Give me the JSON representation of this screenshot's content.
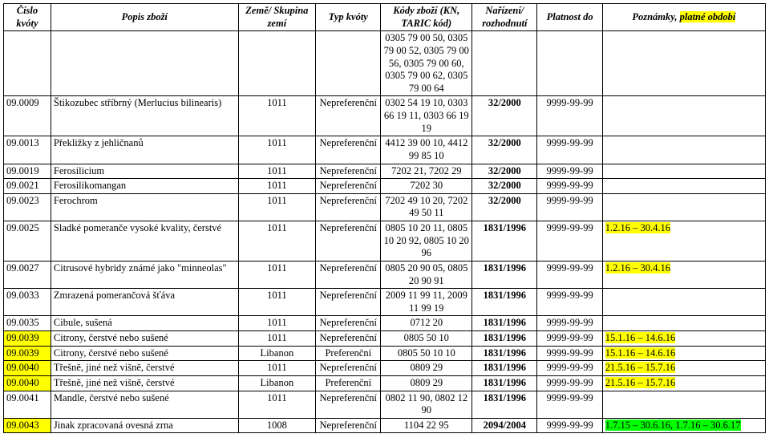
{
  "headers": {
    "cislo": "Číslo kvóty",
    "popis": "Popis zboží",
    "zeme": "Země/ Skupina zemí",
    "typ": "Typ kvóty",
    "kody": "Kódy zboží (KN, TARIC kód)",
    "nariz": "Nařízení/ rozhodnutí",
    "plat": "Platnost do",
    "pozn_prefix": "Poznámky, ",
    "pozn_hl": "platné období"
  },
  "topCodesRow": {
    "codes": "0305 79 00 50, 0305 79 00 52, 0305 79 00 56, 0305 79 00 60, 0305 79 00 62, 0305 79 00 64"
  },
  "rows": [
    {
      "cislo": "09.0009",
      "popis": "Štikozubec stříbrný (Merlucius bilinearis)",
      "zeme": "1011",
      "typ": "Nepreferenční",
      "kody": "0302 54 19 10, 0303 66 19 11, 0303 66 19 19",
      "nariz": "32/2000",
      "plat": "9999-99-99",
      "pozn": ""
    },
    {
      "cislo": "09.0013",
      "popis": "Překližky z jehličnanů",
      "zeme": "1011",
      "typ": "Nepreferenční",
      "kody": "4412 39 00 10, 4412 99 85 10",
      "nariz": "32/2000",
      "plat": "9999-99-99",
      "pozn": ""
    },
    {
      "cislo": "09.0019",
      "popis": "Ferosilicium",
      "zeme": "1011",
      "typ": "Nepreferenční",
      "kody": "7202 21, 7202 29",
      "nariz": "32/2000",
      "plat": "9999-99-99",
      "pozn": ""
    },
    {
      "cislo": "09.0021",
      "popis": "Ferosilikomangan",
      "zeme": "1011",
      "typ": "Nepreferenční",
      "kody": "7202 30",
      "nariz": "32/2000",
      "plat": "9999-99-99",
      "pozn": ""
    },
    {
      "cislo": "09.0023",
      "popis": "Ferochrom",
      "zeme": "1011",
      "typ": "Nepreferenční",
      "kody": "7202 49 10 20, 7202 49 50 11",
      "nariz": "32/2000",
      "plat": "9999-99-99",
      "pozn": ""
    },
    {
      "cislo": "09.0025",
      "popis": "Sladké pomeranče vysoké kvality, čerstvé",
      "zeme": "1011",
      "typ": "Nepreferenční",
      "kody": "0805 10 20 11, 0805 10 20 92, 0805 10 20 96",
      "nariz": "1831/1996",
      "plat": "9999-99-99",
      "pozn_hl": "1.2.16 – 30.4.16",
      "pozn_hl_color": "yellow"
    },
    {
      "cislo": "09.0027",
      "popis": "Citrusové hybridy známé jako \"minneolas\"",
      "zeme": "1011",
      "typ": "Nepreferenční",
      "kody": "0805 20 90 05, 0805 20 90 91",
      "nariz": "1831/1996",
      "plat": "9999-99-99",
      "pozn_hl": "1.2.16 – 30.4.16",
      "pozn_hl_color": "yellow"
    },
    {
      "cislo": "09.0033",
      "popis": "Zmrazená pomerančová šťáva",
      "zeme": "1011",
      "typ": "Nepreferenční",
      "kody": "2009 11 99 11, 2009 11 99 19",
      "nariz": "1831/1996",
      "plat": "9999-99-99",
      "pozn": ""
    },
    {
      "cislo": "09.0035",
      "popis": "Cibule, sušená",
      "zeme": "1011",
      "typ": "Nepreferenční",
      "kody": "0712 20",
      "nariz": "1831/1996",
      "plat": "9999-99-99",
      "pozn": ""
    },
    {
      "cislo": "09.0039",
      "cislo_hl": "yellow",
      "popis": "Citrony, čerstvé nebo sušené",
      "zeme": "1011",
      "typ": "Nepreferenční",
      "kody": "0805 50 10",
      "nariz": "1831/1996",
      "plat": "9999-99-99",
      "pozn_hl": "15.1.16 – 14.6.16",
      "pozn_hl_color": "yellow"
    },
    {
      "cislo": "09.0039",
      "cislo_hl": "yellow",
      "popis": "Citrony, čerstvé nebo sušené",
      "zeme": "Libanon",
      "typ": "Preferenční",
      "kody": "0805 50 10 10",
      "nariz": "1831/1996",
      "plat": "9999-99-99",
      "pozn_hl": "15.1.16 – 14.6.16",
      "pozn_hl_color": "yellow"
    },
    {
      "cislo": "09.0040",
      "cislo_hl": "yellow",
      "popis": "Třešně, jiné než višně, čerstvé",
      "zeme": "1011",
      "typ": "Nepreferenční",
      "kody": "0809 29",
      "nariz": "1831/1996",
      "plat": "9999-99-99",
      "pozn_hl": "21.5.16 – 15.7.16",
      "pozn_hl_color": "yellow"
    },
    {
      "cislo": "09.0040",
      "cislo_hl": "yellow",
      "popis": "Třešně, jiné než višně, čerstvé",
      "zeme": "Libanon",
      "typ": "Preferenční",
      "kody": "0809 29",
      "nariz": "1831/1996",
      "plat": "9999-99-99",
      "pozn_hl": "21.5.16 – 15.7.16",
      "pozn_hl_color": "yellow"
    },
    {
      "cislo": "09.0041",
      "popis": "Mandle, čerstvé nebo sušené",
      "zeme": "1011",
      "typ": "Nepreferenční",
      "kody": "0802 11 90, 0802 12 90",
      "nariz": "1831/1996",
      "plat": "9999-99-99",
      "pozn": ""
    },
    {
      "cislo": "09.0043",
      "cislo_hl": "yellow",
      "popis": "Jinak zpracovaná ovesná zrna",
      "zeme": "1008",
      "typ": "Nepreferenční",
      "kody": "1104 22 95",
      "nariz": "2094/2004",
      "plat": "9999-99-99",
      "pozn_hl": "1.7.15 – 30.6.16, 1.7.16 – 30.6.17",
      "pozn_hl_color": "green"
    }
  ]
}
